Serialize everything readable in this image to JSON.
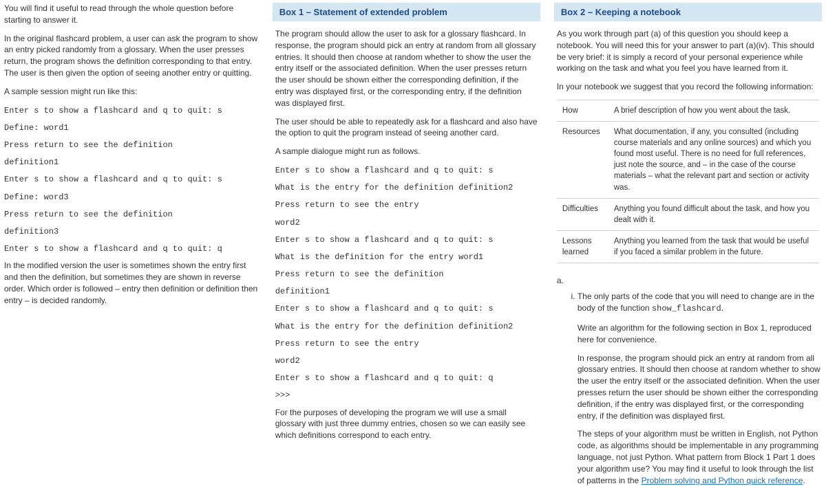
{
  "colors": {
    "box_header_bg": "#d4e6f1",
    "box_header_text": "#1a4d8f",
    "link": "#1a6fb5",
    "table_border": "#d0d0d0"
  },
  "left": {
    "intro1": "You will find it useful to read through the whole question before starting to answer it.",
    "intro2": "In the original flashcard problem, a user can ask the program to show an entry picked randomly from a glossary. When the user presses return, the program shows the definition corresponding to that entry. The user is then given the option of seeing another entry or quitting.",
    "intro3": "A sample session might run like this:",
    "code": [
      "Enter s to show a flashcard and q to quit: s",
      "Define: word1",
      "Press return to see the definition",
      "definition1",
      "Enter s to show a flashcard and q to quit: s",
      "Define: word3",
      "Press return to see the definition",
      "definition3",
      "Enter s to show a flashcard and q to quit: q"
    ],
    "outro": "In the modified version the user is sometimes shown the entry first and then the definition, but sometimes they are shown in reverse order. Which order is followed – entry then definition or definition then entry – is decided randomly."
  },
  "box1": {
    "title": "Box 1 – Statement of extended problem",
    "p1": "The program should allow the user to ask for a glossary flashcard. In response, the program should pick an entry at random from all glossary entries. It should then choose at random whether to show the user the entry itself or the associated definition. When the user presses return the user should be shown either the corresponding definition, if the entry was displayed first, or the corresponding entry, if the definition was displayed first.",
    "p2": "The user should be able to repeatedly ask for a flashcard and also have the option to quit the program instead of seeing another card.",
    "p3": "A sample dialogue might run as follows.",
    "code": [
      "Enter s to show a flashcard and q to quit: s",
      "What is the entry for the definition definition2",
      "Press return to see the entry",
      "word2",
      "Enter s to show a flashcard and q to quit: s",
      "What is the definition for the entry word1",
      "Press return to see the definition",
      "definition1",
      "Enter s to show a flashcard and q to quit: s",
      "What is the entry for the definition definition2",
      "Press return to see the entry",
      "word2",
      "Enter s to show a flashcard and q to quit: q",
      ">>>"
    ],
    "p4": "For the purposes of developing the program we will use a small glossary with just three dummy entries, chosen so we can easily see which definitions correspond to each entry."
  },
  "box2": {
    "title": "Box 2 – Keeping a notebook",
    "p1": "As you work through part (a) of this question you should keep a notebook. You will need this for your answer to part (a)(iv). This should be very brief: it is simply a record of your personal experience while working on the task and what you feel you have learned from it.",
    "p2": "In your notebook we suggest that you record the following information:",
    "rows": [
      {
        "k": "How",
        "v": "A brief description of how you went about the task."
      },
      {
        "k": "Resources",
        "v": "What documentation, if any, you consulted (including course materials and any online sources) and which you found most useful. There is no need for full references, just note the source, and – in the case of the course materials – what the relevant part and section or activity was."
      },
      {
        "k": "Difficulties",
        "v": "Anything you found difficult about the task, and how you dealt with it."
      },
      {
        "k": "Lessons learned",
        "v": "Anything you learned from the task that would be useful if you faced a similar problem in the future."
      }
    ]
  },
  "qa": {
    "label_a": "a.",
    "i_p1a": "The only parts of the code that you will need to change are in the body of the function ",
    "i_p1_code": "show_flashcard",
    "i_p1b": ".",
    "i_p2": "Write an algorithm for the following section in Box 1, reproduced here for convenience.",
    "i_p3": "In response, the program should pick an entry at random from all glossary entries. It should then choose at random whether to show the user the entry itself or the associated definition. When the user presses return the user should be shown either the corresponding definition, if the entry was displayed first, or the corresponding entry, if the definition was displayed first.",
    "i_p4a": "The steps of your algorithm must be written in English, not Python code, as algorithms should be implementable in any programming language, not just Python. What pattern from Block 1 Part 1 does your algorithm use? You may find it useful to look through the list of patterns in the ",
    "i_link": "Problem solving and Python quick reference",
    "i_p4b": "."
  }
}
